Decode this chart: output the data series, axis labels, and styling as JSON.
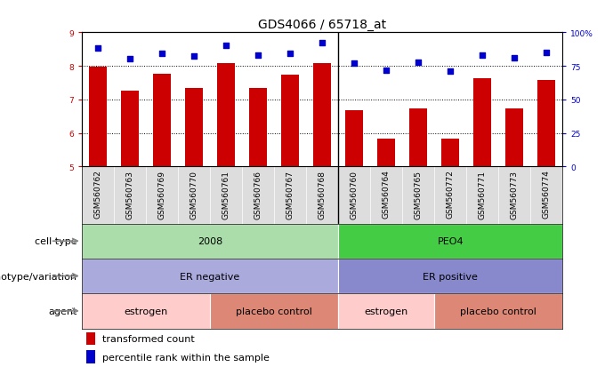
{
  "title": "GDS4066 / 65718_at",
  "samples": [
    "GSM560762",
    "GSM560763",
    "GSM560769",
    "GSM560770",
    "GSM560761",
    "GSM560766",
    "GSM560767",
    "GSM560768",
    "GSM560760",
    "GSM560764",
    "GSM560765",
    "GSM560772",
    "GSM560771",
    "GSM560773",
    "GSM560774"
  ],
  "bar_values": [
    7.97,
    7.27,
    7.77,
    7.33,
    8.08,
    7.35,
    7.73,
    8.08,
    6.68,
    5.82,
    6.72,
    5.83,
    7.62,
    6.72,
    7.57
  ],
  "dot_values": [
    88,
    80,
    84,
    82,
    90,
    83,
    84,
    92,
    77,
    72,
    78,
    71,
    83,
    81,
    85
  ],
  "bar_color": "#cc0000",
  "dot_color": "#0000cc",
  "ylim_left": [
    5,
    9
  ],
  "ylim_right": [
    0,
    100
  ],
  "yticks_left": [
    5,
    6,
    7,
    8,
    9
  ],
  "yticks_right": [
    0,
    25,
    50,
    75,
    100
  ],
  "ytick_labels_right": [
    "0",
    "25",
    "50",
    "75",
    "100%"
  ],
  "cell_type_groups": [
    {
      "label": "2008",
      "start": 0,
      "end": 8,
      "color": "#aaddaa"
    },
    {
      "label": "PEO4",
      "start": 8,
      "end": 15,
      "color": "#44cc44"
    }
  ],
  "genotype_groups": [
    {
      "label": "ER negative",
      "start": 0,
      "end": 8,
      "color": "#aaaadd"
    },
    {
      "label": "ER positive",
      "start": 8,
      "end": 15,
      "color": "#8888cc"
    }
  ],
  "agent_groups": [
    {
      "label": "estrogen",
      "start": 0,
      "end": 4,
      "color": "#ffcccc"
    },
    {
      "label": "placebo control",
      "start": 4,
      "end": 8,
      "color": "#dd8877"
    },
    {
      "label": "estrogen",
      "start": 8,
      "end": 11,
      "color": "#ffcccc"
    },
    {
      "label": "placebo control",
      "start": 11,
      "end": 15,
      "color": "#dd8877"
    }
  ],
  "legend_bar_label": "transformed count",
  "legend_dot_label": "percentile rank within the sample",
  "row_labels": [
    "cell type",
    "genotype/variation",
    "agent"
  ],
  "title_fontsize": 10,
  "tick_fontsize": 6.5,
  "label_fontsize": 8,
  "annot_fontsize": 8
}
